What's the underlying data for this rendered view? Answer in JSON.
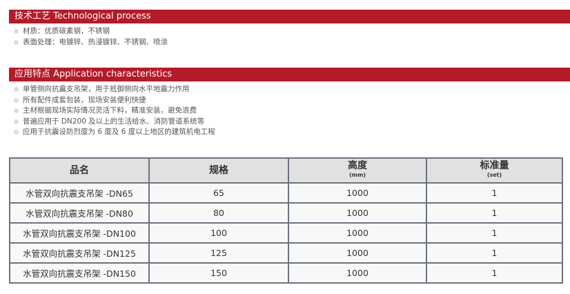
{
  "tech": {
    "title": "技术工艺 Technological process",
    "items": [
      "材质：优质碳素钢，不锈钢",
      "表面处理：电镀锌、热浸镀锌、不锈钢、喷涂"
    ]
  },
  "app": {
    "title": "应用特点 Application characteristics",
    "items": [
      "单管侧向抗震支吊架，用于抵御侧向水平地震力作用",
      "所有配件成套包装，现场安装便利快捷",
      "主材根据现场实际情况灵活下料，精准安装，避免浪费",
      "普遍应用于 DN200 及以上的生活给水、消防管道系统等",
      "应用于抗震设防烈度为 6 度及 6 度以上地区的建筑机电工程"
    ]
  },
  "table": {
    "headers": [
      {
        "label": "品名",
        "unit": ""
      },
      {
        "label": "规格",
        "unit": ""
      },
      {
        "label": "高度",
        "unit": "(mm)"
      },
      {
        "label": "标准量",
        "unit": "(set)"
      }
    ],
    "rows": [
      [
        "水管双向抗震支吊架 -DN65",
        "65",
        "1000",
        "1"
      ],
      [
        "水管双向抗震支吊架 -DN80",
        "80",
        "1000",
        "1"
      ],
      [
        "水管双向抗震支吊架 -DN100",
        "100",
        "1000",
        "1"
      ],
      [
        "水管双向抗震支吊架 -DN125",
        "125",
        "1000",
        "1"
      ],
      [
        "水管双向抗震支吊架 -DN150",
        "150",
        "1000",
        "1"
      ]
    ]
  },
  "colors": {
    "accent": "#b51a28",
    "header_bg": "#e1e1e1",
    "border": "#6a7180"
  }
}
